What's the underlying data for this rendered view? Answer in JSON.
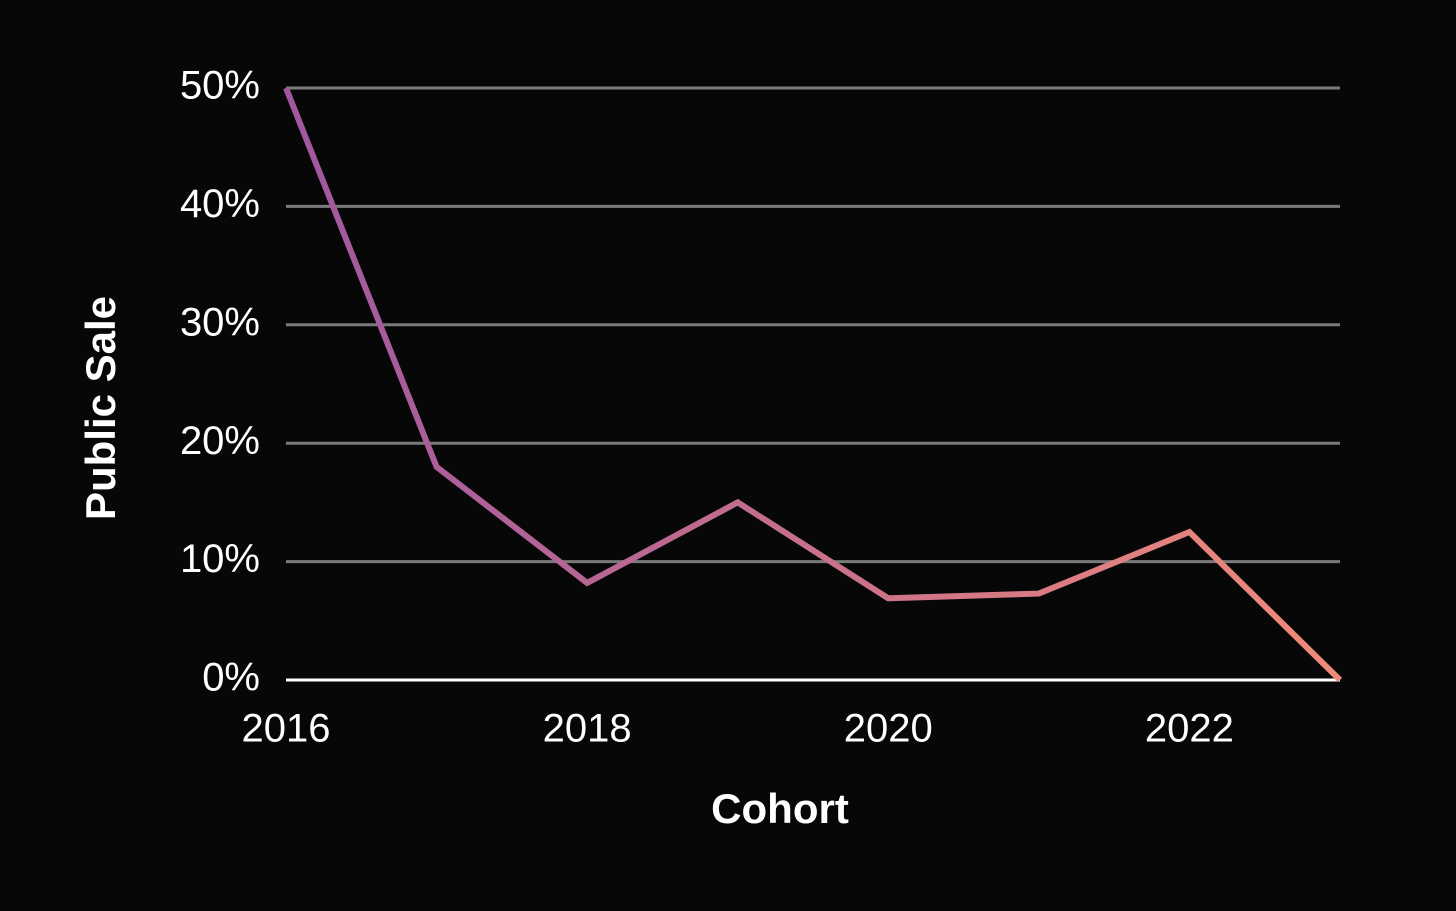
{
  "chart_data": {
    "type": "line",
    "x_label": "Cohort",
    "y_label": "Public Sale",
    "x": [
      2016,
      2017,
      2018,
      2019,
      2020,
      2021,
      2022,
      2023
    ],
    "values": [
      50,
      18,
      8.2,
      15,
      6.9,
      7.3,
      12.5,
      0
    ],
    "color": [
      "#a0579f",
      "#f08a78"
    ],
    "xlim": [
      2016,
      2023
    ],
    "xticks": [
      2016,
      2018,
      2020,
      2022
    ],
    "ylim": [
      0,
      50
    ],
    "yticks": [
      {
        "value": 0,
        "label": "0%"
      },
      {
        "value": 10,
        "label": "10%"
      },
      {
        "value": 20,
        "label": "20%"
      },
      {
        "value": 30,
        "label": "30%"
      },
      {
        "value": 40,
        "label": "40%"
      },
      {
        "value": 50,
        "label": "50%"
      }
    ],
    "grid": true
  }
}
